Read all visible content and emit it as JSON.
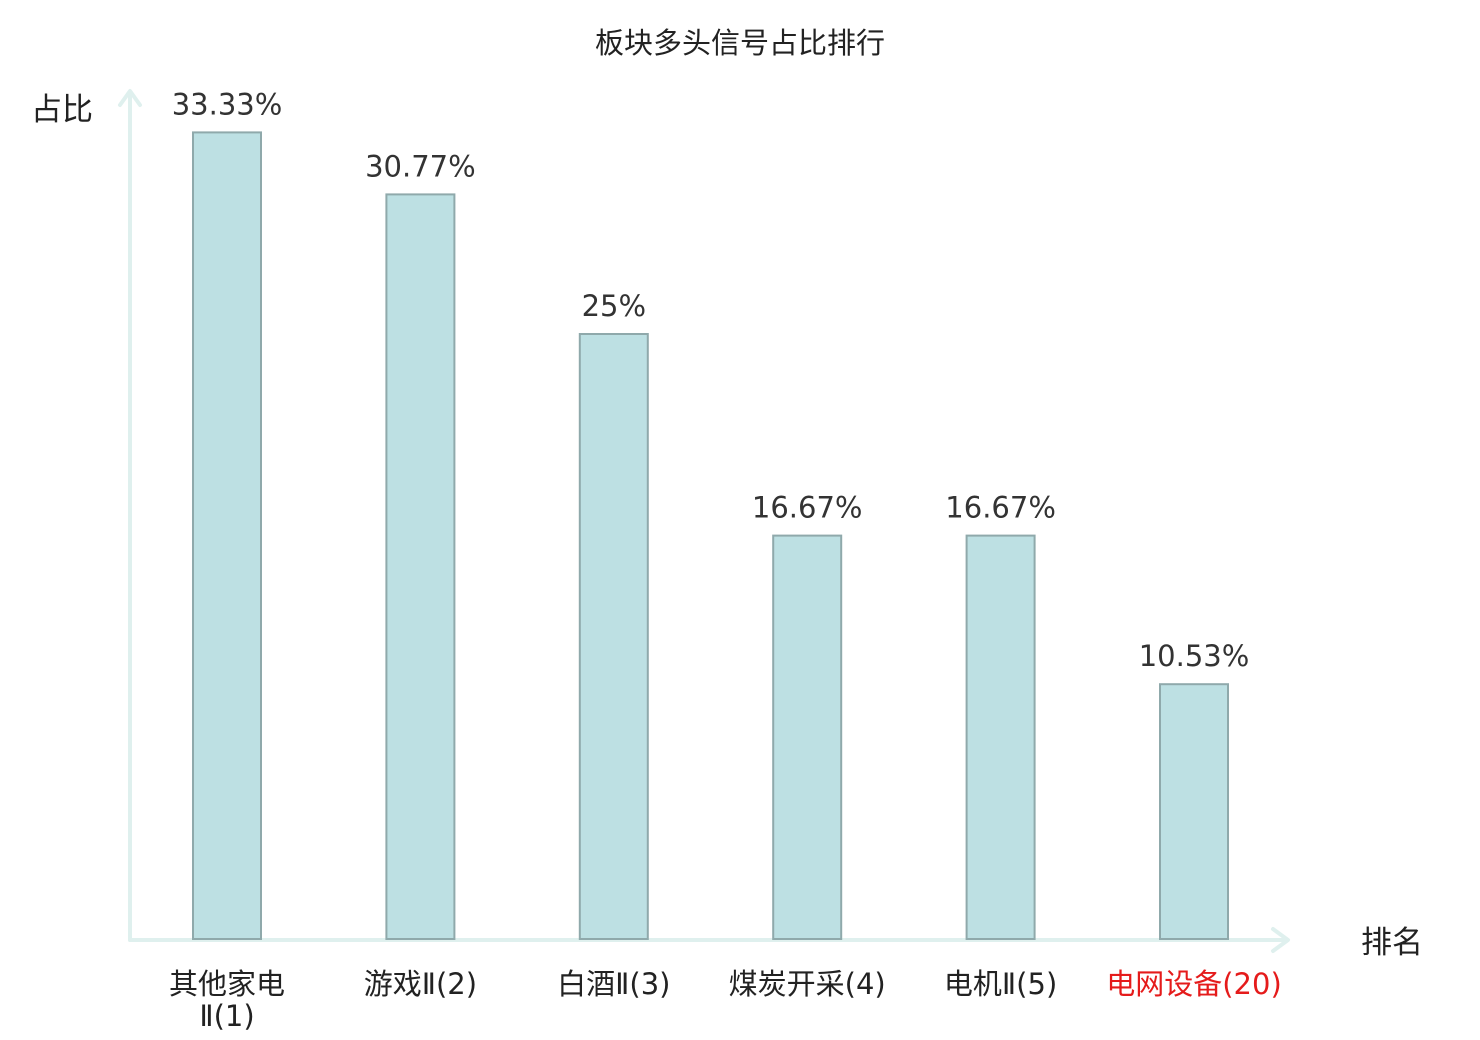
{
  "colors": {
    "bar_fill": "#bde0e3",
    "bar_stroke": "#8fa9ab",
    "axis": "#dff0ee",
    "text": "#222222",
    "value_text": "#333333",
    "highlight": "#e51b1b"
  },
  "chart_data": {
    "type": "bar",
    "title": "板块多头信号占比排行",
    "xlabel": "排名",
    "ylabel": "占比",
    "ylim": [
      0,
      35
    ],
    "grid": false,
    "categories": [
      {
        "name": "其他家电",
        "suffix": "Ⅱ(1)",
        "label": "其他家电Ⅱ(1)",
        "wrap": true,
        "highlight": false
      },
      {
        "name": "游戏",
        "suffix": "Ⅱ(2)",
        "label": "游戏Ⅱ(2)",
        "wrap": false,
        "highlight": false
      },
      {
        "name": "白酒",
        "suffix": "Ⅱ(3)",
        "label": "白酒Ⅱ(3)",
        "wrap": false,
        "highlight": false
      },
      {
        "name": "煤炭开采",
        "suffix": "(4)",
        "label": "煤炭开采(4)",
        "wrap": false,
        "highlight": false
      },
      {
        "name": "电机",
        "suffix": "Ⅱ(5)",
        "label": "电机Ⅱ(5)",
        "wrap": false,
        "highlight": false
      },
      {
        "name": "电网设备",
        "suffix": "(20)",
        "label": "电网设备(20)",
        "wrap": false,
        "highlight": true
      }
    ],
    "values": [
      33.33,
      30.77,
      25,
      16.67,
      16.67,
      10.53
    ],
    "value_labels": [
      "33.33%",
      "30.77%",
      "25%",
      "16.67%",
      "16.67%",
      "10.53%"
    ]
  }
}
